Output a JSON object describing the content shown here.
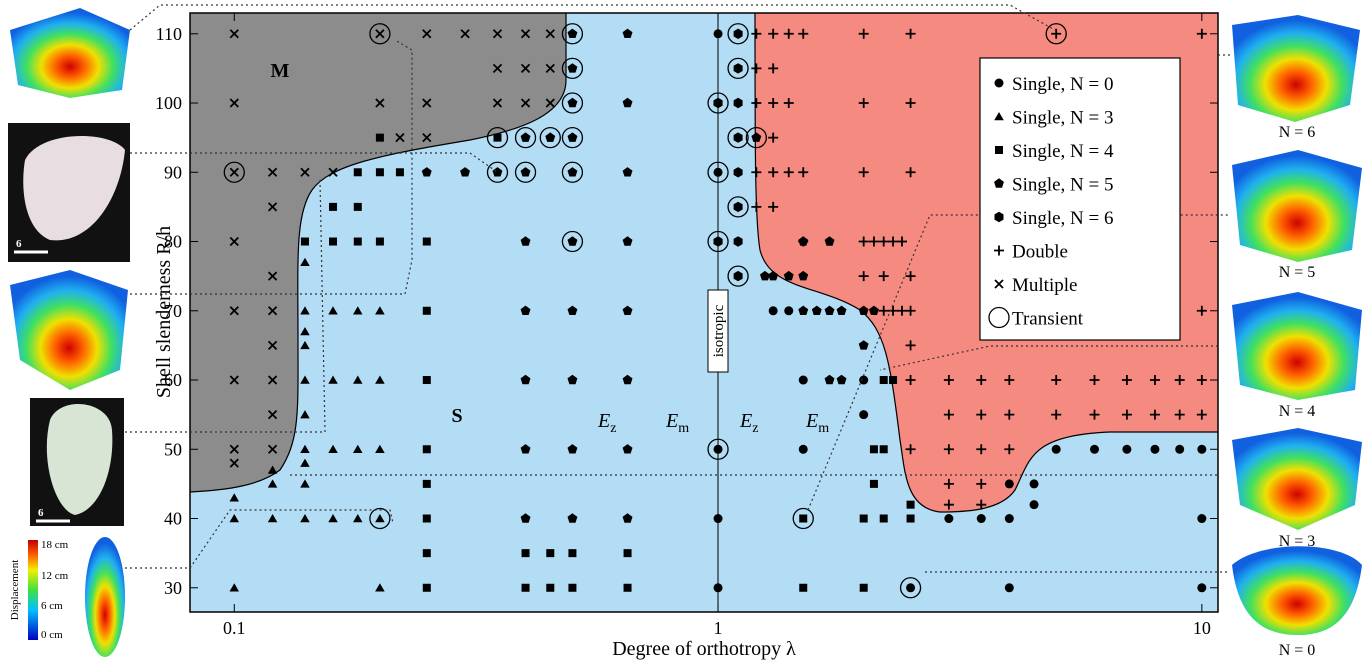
{
  "chart_data": {
    "type": "scatter",
    "xlabel": "Degree of orthotropy λ",
    "ylabel": "Shell slenderness R/h",
    "xlim": [
      0.081,
      10.8
    ],
    "ylim": [
      26.5,
      113
    ],
    "xscale": "log",
    "xticks": [
      0.1,
      1,
      10
    ],
    "yticks": [
      30,
      40,
      50,
      60,
      70,
      80,
      90,
      100,
      110
    ],
    "regions": [
      "M",
      "S"
    ],
    "orthotropy_labels": [
      {
        "main": "E",
        "sub": "z"
      },
      {
        "main": "E",
        "sub": "m"
      },
      {
        "main": "E",
        "sub": "z"
      },
      {
        "main": "E",
        "sub": "m"
      }
    ],
    "isotropic_label": "isotropic",
    "legend": "upper right",
    "series": [
      {
        "name": "Single, N = 0",
        "marker": "circle",
        "color": "#000000",
        "x": [
          1,
          1,
          1,
          1,
          1,
          1.3,
          1.4,
          1.5,
          2,
          2.5,
          3,
          3.5,
          4,
          4,
          4,
          4.5,
          4.5,
          5,
          6,
          7,
          8,
          9,
          10,
          10,
          10,
          1.5,
          2
        ],
        "y": [
          110,
          90,
          50,
          40,
          30,
          70,
          70,
          60,
          60,
          30,
          40,
          40,
          45,
          40,
          30,
          45,
          42,
          50,
          50,
          50,
          50,
          50,
          50,
          40,
          30,
          50,
          55
        ]
      },
      {
        "name": "Single, N = 3",
        "marker": "triangle",
        "color": "#000000",
        "x": [
          0.1,
          0.1,
          0.1,
          0.12,
          0.12,
          0.12,
          0.14,
          0.14,
          0.14,
          0.14,
          0.14,
          0.14,
          0.14,
          0.14,
          0.14,
          0.14,
          0.16,
          0.16,
          0.16,
          0.16,
          0.18,
          0.18,
          0.18,
          0.18,
          0.2,
          0.2,
          0.2,
          0.2,
          0.2
        ],
        "y": [
          43,
          40,
          30,
          47,
          45,
          40,
          77,
          70,
          67,
          65,
          60,
          55,
          50,
          48,
          45,
          40,
          70,
          60,
          50,
          40,
          70,
          60,
          50,
          40,
          70,
          60,
          50,
          40,
          30
        ]
      },
      {
        "name": "Single, N = 4",
        "marker": "square",
        "color": "#000000",
        "x": [
          0.14,
          0.16,
          0.16,
          0.18,
          0.18,
          0.18,
          0.2,
          0.2,
          0.2,
          0.22,
          0.25,
          0.25,
          0.25,
          0.25,
          0.25,
          0.25,
          0.25,
          0.25,
          0.35,
          0.4,
          0.4,
          0.45,
          0.45,
          0.5,
          0.5,
          0.65,
          0.65,
          1.5,
          1.5,
          2,
          2,
          2.1,
          2.2,
          2.2,
          2.3,
          2.5,
          2.5,
          2.1,
          2.2
        ],
        "y": [
          80,
          85,
          80,
          90,
          85,
          80,
          95,
          90,
          80,
          90,
          80,
          70,
          60,
          50,
          45,
          40,
          35,
          30,
          95,
          35,
          30,
          35,
          30,
          35,
          30,
          35,
          30,
          40,
          30,
          40,
          30,
          50,
          50,
          60,
          60,
          40,
          42,
          45,
          40
        ]
      },
      {
        "name": "Single, N = 5",
        "marker": "pentagon",
        "color": "#000000",
        "x": [
          0.25,
          0.3,
          0.35,
          0.4,
          0.4,
          0.45,
          0.5,
          0.5,
          0.5,
          0.5,
          0.5,
          0.5,
          0.65,
          0.65,
          0.65,
          0.65,
          0.65,
          0.65,
          0.65,
          0.65,
          0.4,
          0.4,
          0.4,
          0.4,
          0.4,
          0.5,
          0.5,
          0.5,
          0.5,
          1.2,
          1.25,
          1.3,
          1.4,
          1.5,
          1.6,
          1.7,
          1.8,
          2,
          1.5,
          1.7,
          1.5,
          1.7,
          1.8,
          2,
          2.1
        ],
        "y": [
          90,
          90,
          90,
          95,
          90,
          95,
          110,
          105,
          100,
          95,
          90,
          80,
          110,
          100,
          90,
          80,
          70,
          60,
          50,
          40,
          80,
          70,
          60,
          50,
          40,
          70,
          60,
          50,
          40,
          95,
          75,
          75,
          75,
          75,
          70,
          70,
          70,
          70,
          80,
          80,
          70,
          60,
          60,
          65,
          70
        ]
      },
      {
        "name": "Single, N = 6",
        "marker": "hexagon",
        "color": "#000000",
        "x": [
          1,
          1,
          1.1,
          1.1,
          1.1,
          1.1,
          1.1,
          1.1,
          1.1,
          1.1
        ],
        "y": [
          100,
          80,
          110,
          105,
          100,
          95,
          90,
          85,
          80,
          75
        ]
      },
      {
        "name": "Double",
        "marker": "plus",
        "color": "#000000",
        "x": [
          1.2,
          1.3,
          1.4,
          1.5,
          2,
          2.5,
          5,
          10,
          1.2,
          1.3,
          1.2,
          1.3,
          1.4,
          2,
          2.5,
          1.3,
          1.2,
          1.3,
          1.4,
          1.5,
          2,
          2.5,
          1.2,
          1.3,
          1.5,
          2,
          2.1,
          2.2,
          2.3,
          2.4,
          2,
          2.2,
          2.5,
          2.2,
          2.3,
          2.4,
          2.5,
          10,
          2.5,
          2.5,
          3,
          3.5,
          4,
          5,
          6,
          7,
          8,
          9,
          10,
          3,
          3.5,
          4,
          5,
          6,
          7,
          8,
          9,
          10,
          2.5,
          3,
          3.5,
          4,
          3,
          3.5,
          3,
          3.5
        ],
        "y": [
          110,
          110,
          110,
          110,
          110,
          110,
          110,
          110,
          105,
          105,
          100,
          100,
          100,
          100,
          100,
          95,
          90,
          90,
          90,
          90,
          90,
          90,
          85,
          85,
          80,
          80,
          80,
          80,
          80,
          80,
          75,
          75,
          75,
          70,
          70,
          70,
          70,
          70,
          65,
          60,
          60,
          60,
          60,
          60,
          60,
          60,
          60,
          60,
          60,
          55,
          55,
          55,
          55,
          55,
          55,
          55,
          55,
          55,
          50,
          50,
          50,
          50,
          45,
          45,
          42,
          42
        ]
      },
      {
        "name": "Multiple",
        "marker": "cross",
        "color": "#000000",
        "x": [
          0.1,
          0.1,
          0.1,
          0.1,
          0.1,
          0.1,
          0.1,
          0.1,
          0.12,
          0.12,
          0.12,
          0.12,
          0.12,
          0.12,
          0.12,
          0.12,
          0.14,
          0.16,
          0.2,
          0.2,
          0.22,
          0.25,
          0.25,
          0.25,
          0.3,
          0.35,
          0.35,
          0.35,
          0.4,
          0.4,
          0.4,
          0.45,
          0.45,
          0.45
        ],
        "y": [
          110,
          100,
          90,
          80,
          70,
          60,
          50,
          48,
          90,
          85,
          75,
          70,
          65,
          60,
          55,
          50,
          90,
          90,
          110,
          100,
          95,
          110,
          100,
          95,
          110,
          110,
          105,
          100,
          110,
          105,
          100,
          110,
          105,
          100
        ]
      },
      {
        "name": "Transient",
        "marker": "ring",
        "color": "#000000",
        "x": [
          0.1,
          0.2,
          0.2,
          0.35,
          0.35,
          0.4,
          0.4,
          0.45,
          0.5,
          0.5,
          0.5,
          0.5,
          0.5,
          0.5,
          1,
          1,
          1,
          1,
          1.1,
          1.1,
          1.1,
          1.1,
          1.1,
          1.2,
          1.5,
          2.5,
          5
        ],
        "y": [
          90,
          110,
          40,
          95,
          90,
          95,
          90,
          95,
          110,
          105,
          100,
          95,
          90,
          80,
          100,
          90,
          80,
          50,
          110,
          105,
          95,
          85,
          75,
          95,
          40,
          30,
          110
        ]
      }
    ]
  },
  "side_captions": [
    "N = 6",
    "N = 5",
    "N = 4",
    "N = 3",
    "N = 0"
  ],
  "colorbar": {
    "title": "Displacement",
    "labels": [
      "18 cm",
      "12 cm",
      "6 cm",
      "0 cm"
    ]
  },
  "scale_bars": [
    "6",
    "6"
  ]
}
